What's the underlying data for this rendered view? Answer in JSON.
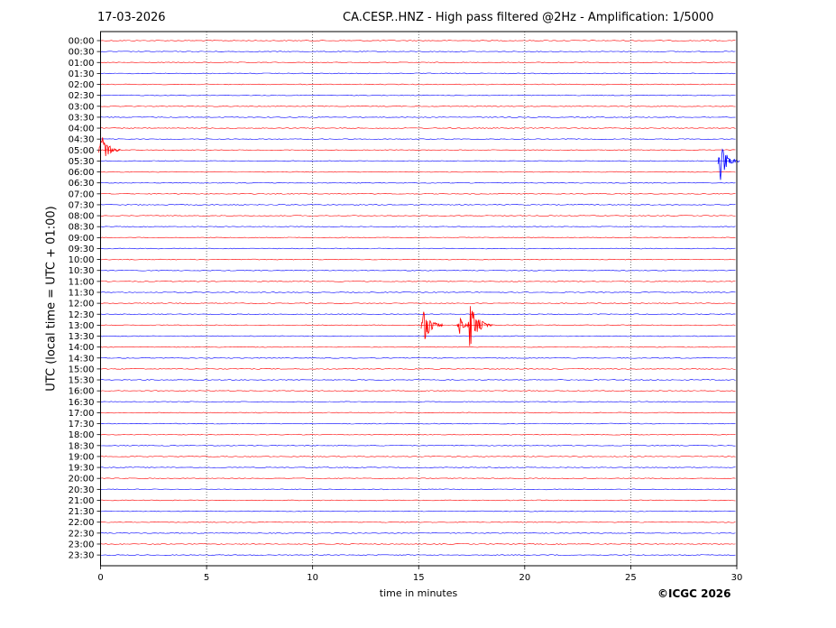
{
  "header": {
    "date": "17-03-2026",
    "title": "CA.CESP..HNZ - High pass filtered @2Hz - Amplification: 1/5000"
  },
  "footer": {
    "copyright": "©ICGC 2026"
  },
  "chart_data": {
    "type": "line",
    "xlabel": "time in minutes",
    "ylabel": "UTC (local time = UTC + 01:00)",
    "xlim": [
      0,
      30
    ],
    "x_ticks": [
      "0",
      "5",
      "10",
      "15",
      "20",
      "25",
      "30"
    ],
    "rows": [
      "00:00",
      "00:30",
      "01:00",
      "01:30",
      "02:00",
      "02:30",
      "03:00",
      "03:30",
      "04:00",
      "04:30",
      "05:00",
      "05:30",
      "06:00",
      "06:30",
      "07:00",
      "07:30",
      "08:00",
      "08:30",
      "09:00",
      "09:30",
      "10:00",
      "10:30",
      "11:00",
      "11:30",
      "12:00",
      "12:30",
      "13:00",
      "13:30",
      "14:00",
      "14:30",
      "15:00",
      "15:30",
      "16:00",
      "16:30",
      "17:00",
      "17:30",
      "18:00",
      "18:30",
      "19:00",
      "19:30",
      "20:00",
      "20:30",
      "21:00",
      "21:30",
      "22:00",
      "22:30",
      "23:00",
      "23:30"
    ],
    "grid": {
      "vertical_minutes": [
        5,
        10,
        15,
        20,
        25
      ],
      "style": "dotted"
    },
    "trace_colors": [
      "#ff0000",
      "#0000ff"
    ],
    "events": [
      {
        "row": "05:30",
        "minute": 29.2,
        "amplitude": 1.0,
        "description": "seismic event"
      },
      {
        "row": "05:00",
        "minute": 0.0,
        "amplitude": 1.0,
        "description": "seismic event"
      },
      {
        "row": "13:00",
        "minute": 15.2,
        "amplitude": 1.0,
        "description": "seismic event"
      },
      {
        "row": "13:00",
        "minute": 16.9,
        "amplitude": 0.5,
        "description": "seismic event"
      },
      {
        "row": "13:00",
        "minute": 17.4,
        "amplitude": 1.2,
        "description": "seismic event"
      }
    ]
  }
}
